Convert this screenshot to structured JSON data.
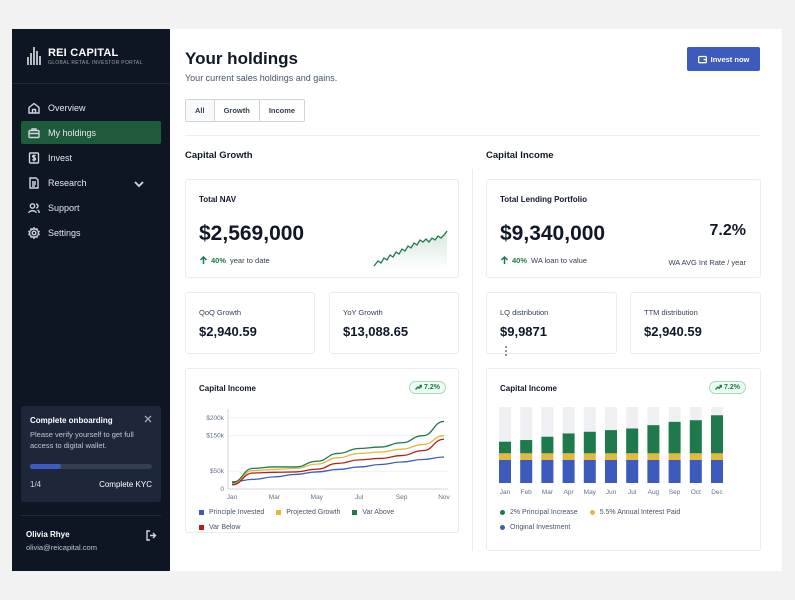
{
  "brand": {
    "title": "REI CAPITAL",
    "subtitle": "GLOBAL RETAIL INVESTOR PORTAL"
  },
  "sidebar": {
    "items": [
      {
        "label": "Overview",
        "icon": "home-icon"
      },
      {
        "label": "My holdings",
        "icon": "briefcase-icon",
        "active": true
      },
      {
        "label": "Invest",
        "icon": "dollar-icon"
      },
      {
        "label": "Research",
        "icon": "document-icon",
        "has_chevron": true
      },
      {
        "label": "Support",
        "icon": "users-icon"
      },
      {
        "label": "Settings",
        "icon": "gear-icon"
      }
    ],
    "onboarding": {
      "title": "Complete onboarding",
      "text": "Please verify yourself to get full access to digital wallet.",
      "progress": 0.25,
      "step": "1/4",
      "action": "Complete KYC"
    },
    "user": {
      "name": "Olivia Rhye",
      "email": "olivia@reicapital.com"
    }
  },
  "header": {
    "title": "Your holdings",
    "subtitle": "Your current sales holdings and gains.",
    "invest_label": "Invest now",
    "tabs": [
      "All",
      "Growth",
      "Income"
    ]
  },
  "growth": {
    "section_title": "Capital Growth",
    "nav": {
      "label": "Total NAV",
      "value": "$2,569,000",
      "trend_pct": "40%",
      "trend_text": "year to date"
    },
    "qoq": {
      "label": "QoQ Growth",
      "value": "$2,940.59"
    },
    "yoy": {
      "label": "YoY Growth",
      "value": "$13,088.65"
    },
    "chart_card": {
      "title": "Capital Income",
      "chip": "7.2%"
    }
  },
  "income": {
    "section_title": "Capital Income",
    "lending": {
      "label": "Total Lending Portfolio",
      "value": "$9,340,000",
      "trend_pct": "40%",
      "trend_text": "WA loan to value",
      "rate": "7.2%",
      "rate_label": "WA AVG Int Rate / year"
    },
    "lq": {
      "label": "LQ distribution",
      "value": "$9,9871"
    },
    "ttm": {
      "label": "TTM distribution",
      "value": "$2,940.59"
    },
    "chart_card": {
      "title": "Capital Income",
      "chip": "7.2%"
    }
  },
  "colors": {
    "blue": "#3d5bbd",
    "green": "#1e7a4b",
    "yellow": "#e3b93b",
    "red": "#b42318",
    "sidebar": "#0f1623"
  },
  "chart_data": [
    {
      "type": "line",
      "ylim": [
        0,
        225
      ],
      "y_ticks": [
        "0",
        "$50k",
        "$150k",
        "$200k"
      ],
      "categories": [
        "Jan",
        "Mar",
        "May",
        "Jul",
        "Sep",
        "Nov"
      ],
      "x": [
        0,
        1,
        2,
        3,
        4,
        5,
        6,
        7,
        8,
        9,
        10
      ],
      "series": [
        {
          "name": "Principle Invested",
          "color": "#3d5bbd",
          "values": [
            20,
            27,
            34,
            41,
            48,
            55,
            62,
            69,
            76,
            83,
            90
          ]
        },
        {
          "name": "Projected Growth",
          "color": "#e3b93b",
          "values": [
            15,
            52,
            55,
            58,
            70,
            88,
            100,
            104,
            112,
            125,
            150
          ]
        },
        {
          "name": "Var Above",
          "color": "#1e7a4b",
          "values": [
            18,
            58,
            62,
            62,
            78,
            100,
            114,
            118,
            130,
            150,
            190
          ]
        },
        {
          "name": "Var Below",
          "color": "#b42318",
          "values": [
            12,
            45,
            47,
            48,
            56,
            72,
            82,
            86,
            94,
            108,
            140
          ]
        }
      ],
      "legend": "bottom"
    },
    {
      "type": "bar",
      "categories": [
        "Jan",
        "Feb",
        "Mar",
        "Apr",
        "May",
        "Jun",
        "Jul",
        "Aug",
        "Sep",
        "Oct",
        "Dec"
      ],
      "series": [
        {
          "name": "Original Investment",
          "color": "#3d5bbd",
          "values": [
            28,
            28,
            28,
            28,
            28,
            28,
            28,
            28,
            28,
            28,
            28
          ]
        },
        {
          "name": "5.5% Annual Interest Paid",
          "color": "#e3b93b",
          "values": [
            8,
            8,
            8,
            8,
            8,
            8,
            8,
            8,
            8,
            8,
            8
          ]
        },
        {
          "name": "2% Principal Increase",
          "color": "#1e7a4b",
          "values": [
            14,
            16,
            20,
            24,
            26,
            28,
            30,
            34,
            38,
            40,
            46
          ]
        }
      ],
      "max": 92,
      "legend": "bottom"
    }
  ]
}
